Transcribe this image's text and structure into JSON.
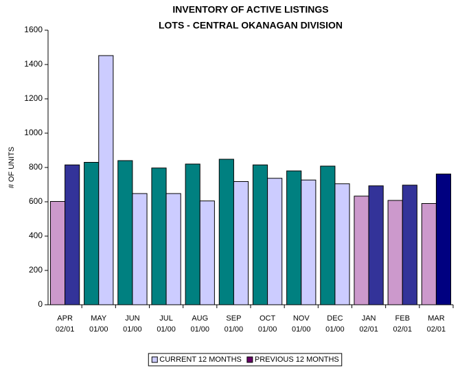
{
  "chart_data": {
    "type": "bar",
    "title": [
      "INVENTORY OF ACTIVE LISTINGS",
      "LOTS - CENTRAL OKANAGAN DIVISION"
    ],
    "y_label": "# OF UNITS",
    "categories": [
      [
        "APR",
        "02/01"
      ],
      [
        "MAY",
        "01/00"
      ],
      [
        "JUN",
        "01/00"
      ],
      [
        "JUL",
        "01/00"
      ],
      [
        "AUG",
        "01/00"
      ],
      [
        "SEP",
        "01/00"
      ],
      [
        "OCT",
        "01/00"
      ],
      [
        "NOV",
        "01/00"
      ],
      [
        "DEC",
        "01/00"
      ],
      [
        "JAN",
        "02/01"
      ],
      [
        "FEB",
        "02/01"
      ],
      [
        "MAR",
        "02/01"
      ]
    ],
    "series": [
      {
        "name": "CURRENT 12 MONTHS",
        "color": "#ccccff",
        "colors": [
          "#cc99cc",
          "#008080",
          "#008080",
          "#008080",
          "#008080",
          "#008080",
          "#008080",
          "#008080",
          "#008080",
          "#cc99cc",
          "#cc99cc",
          "#cc99cc"
        ],
        "values": [
          602,
          830,
          840,
          797,
          820,
          848,
          815,
          780,
          808,
          633,
          608,
          590
        ]
      },
      {
        "name": "PREVIOUS 12 MONTHS",
        "color": "#660066",
        "colors": [
          "#333399",
          "#ccccff",
          "#ccccff",
          "#ccccff",
          "#ccccff",
          "#ccccff",
          "#ccccff",
          "#ccccff",
          "#ccccff",
          "#333399",
          "#333399",
          "#000080"
        ],
        "values": [
          815,
          1452,
          648,
          648,
          605,
          718,
          737,
          727,
          705,
          693,
          697,
          762
        ]
      }
    ],
    "ylim": [
      0,
      1600
    ],
    "yticks": [
      0,
      200,
      400,
      600,
      800,
      1000,
      1200,
      1400,
      1600
    ],
    "grid": false
  }
}
